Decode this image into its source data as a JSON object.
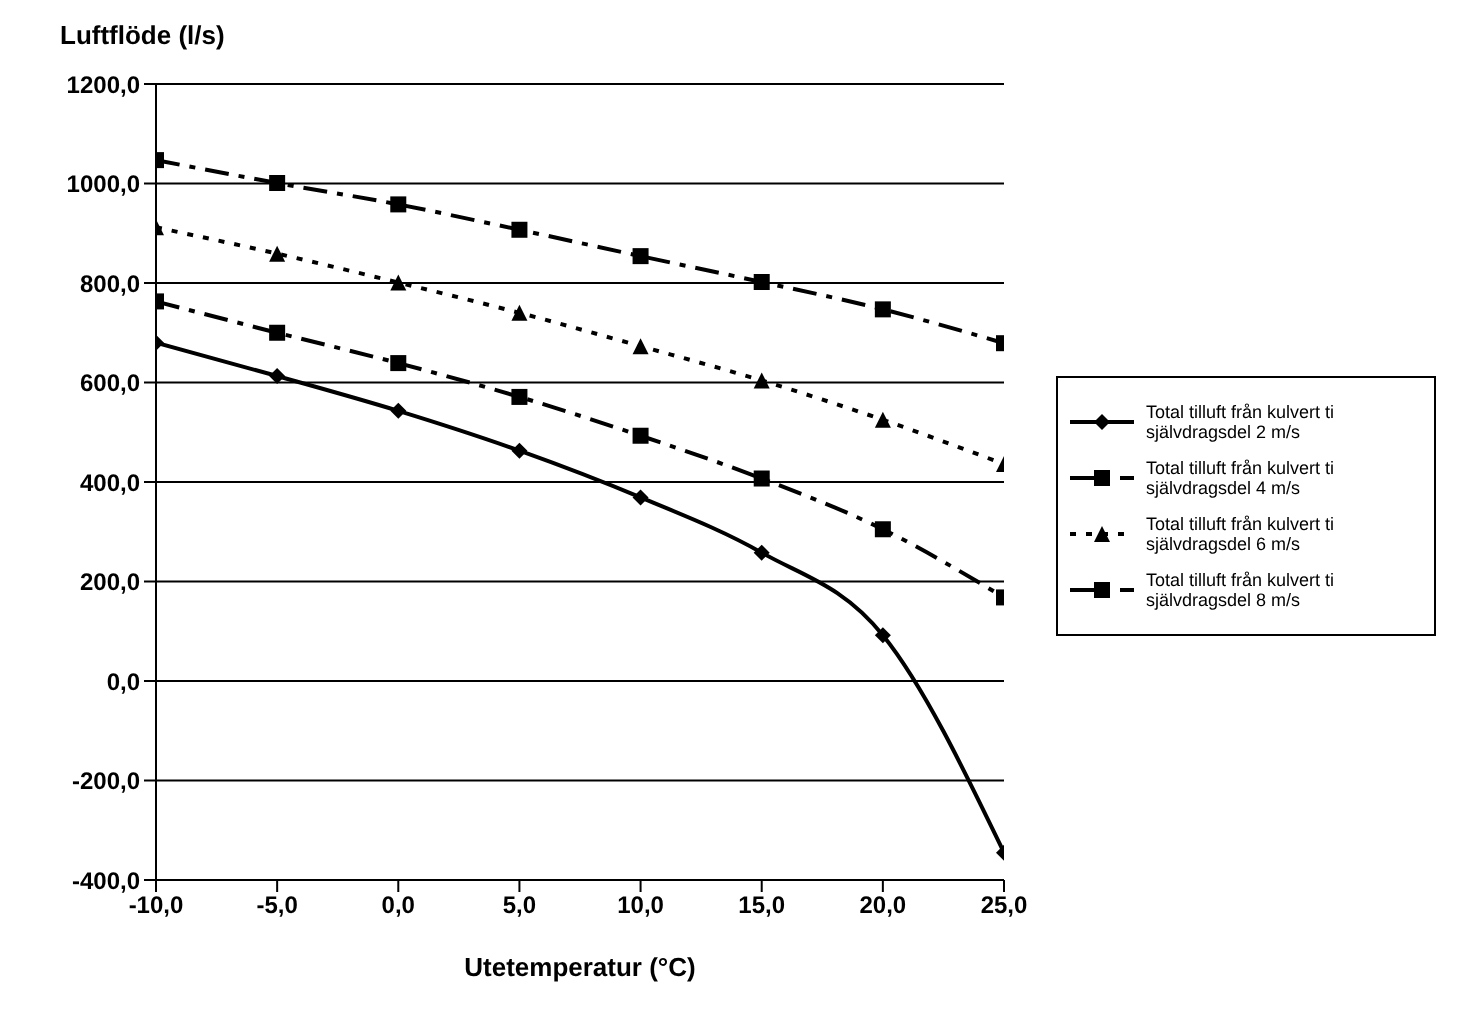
{
  "chart_data": {
    "type": "line",
    "xlabel": "Utetemperatur (°C)",
    "ylabel": "Luftflöde (l/s)",
    "x": [
      -10,
      -5,
      0,
      5,
      10,
      15,
      20,
      25
    ],
    "xlim": [
      -10,
      25
    ],
    "xticks": [
      {
        "value": -10,
        "label": "-10,0"
      },
      {
        "value": -5,
        "label": "-5,0"
      },
      {
        "value": 0,
        "label": "0,0"
      },
      {
        "value": 5,
        "label": "5,0"
      },
      {
        "value": 10,
        "label": "10,0"
      },
      {
        "value": 15,
        "label": "15,0"
      },
      {
        "value": 20,
        "label": "20,0"
      },
      {
        "value": 25,
        "label": "25,0"
      }
    ],
    "ylim": [
      -400,
      1200
    ],
    "yticks": [
      {
        "value": -400,
        "label": "-400,0"
      },
      {
        "value": -200,
        "label": "-200,0"
      },
      {
        "value": 0,
        "label": "0,0"
      },
      {
        "value": 200,
        "label": "200,0"
      },
      {
        "value": 400,
        "label": "400,0"
      },
      {
        "value": 600,
        "label": "600,0"
      },
      {
        "value": 800,
        "label": "800,0"
      },
      {
        "value": 1000,
        "label": "1000,0"
      },
      {
        "value": 1200,
        "label": "1200,0"
      }
    ],
    "grid": "y",
    "legend": "right",
    "series": [
      {
        "name": "Total tilluft från kulvert ti självdragsdel 2 m/s",
        "color": "#000000",
        "marker": "diamond",
        "line_style": "solid",
        "values": [
          680,
          613,
          543,
          463,
          369,
          258,
          92,
          -345
        ]
      },
      {
        "name": "Total tilluft från kulvert ti självdragsdel 4 m/s",
        "color": "#000000",
        "marker": "square",
        "line_style": "dashed",
        "values": [
          763,
          700,
          639,
          571,
          493,
          407,
          305,
          168
        ]
      },
      {
        "name": "Total tilluft från kulvert ti självdragsdel 6 m/s",
        "color": "#000000",
        "marker": "triangle",
        "line_style": "dotted",
        "values": [
          912,
          859,
          801,
          740,
          673,
          604,
          525,
          436
        ]
      },
      {
        "name": "Total tilluft från kulvert ti självdragsdel 8 m/s",
        "color": "#000000",
        "marker": "square",
        "line_style": "dashed",
        "values": [
          1047,
          1001,
          958,
          907,
          854,
          802,
          747,
          679
        ]
      }
    ]
  }
}
